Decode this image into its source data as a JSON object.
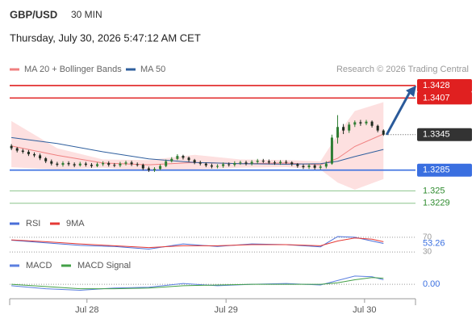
{
  "header": {
    "symbol": "GBP/USD",
    "interval": "30 MIN",
    "datetime": "Thursday, July 30, 2026 5:47:12 AM CET",
    "source": "Research © 2026 Trading Central"
  },
  "chart_data": [
    {
      "type": "candlestick",
      "up_color": "#2e7d32",
      "down_color": "#1f2a1f",
      "xlim": [
        -0.3,
        70.6
      ],
      "xticks": [
        {
          "value": 13.2,
          "label": "Jul 28"
        },
        {
          "value": 37.5,
          "label": "Jul 29"
        },
        {
          "value": 61.7,
          "label": "Jul 30"
        }
      ],
      "ylim": [
        1.3215,
        1.3443
      ],
      "open": [
        1.3326,
        1.3322,
        1.3318,
        1.3316,
        1.3312,
        1.331,
        1.3305,
        1.33,
        1.3296,
        1.3294,
        1.3297,
        1.3295,
        1.3293,
        1.3296,
        1.3294,
        1.3292,
        1.3295,
        1.3297,
        1.3294,
        1.3293,
        1.3296,
        1.3298,
        1.3295,
        1.3294,
        1.3288,
        1.3285,
        1.3287,
        1.3292,
        1.33,
        1.3304,
        1.3309,
        1.3306,
        1.3302,
        1.3298,
        1.3296,
        1.3293,
        1.3291,
        1.3292,
        1.3295,
        1.3294,
        1.3297,
        1.3298,
        1.3296,
        1.3299,
        1.3301,
        1.33,
        1.3298,
        1.3297,
        1.3299,
        1.3298,
        1.3295,
        1.3292,
        1.329,
        1.3293,
        1.3289,
        1.3291,
        1.3296,
        1.334,
        1.3358,
        1.3352,
        1.3362,
        1.3366,
        1.3364,
        1.3367,
        1.336,
        1.3352
      ],
      "high": [
        1.3329,
        1.3324,
        1.3321,
        1.3319,
        1.3315,
        1.3313,
        1.3307,
        1.3303,
        1.3299,
        1.33,
        1.33,
        1.3298,
        1.3299,
        1.3299,
        1.3297,
        1.3298,
        1.33,
        1.33,
        1.3297,
        1.3299,
        1.3301,
        1.3301,
        1.3298,
        1.3296,
        1.3291,
        1.329,
        1.3295,
        1.3303,
        1.3307,
        1.3312,
        1.3311,
        1.3308,
        1.3304,
        1.3301,
        1.3298,
        1.3296,
        1.3295,
        1.3298,
        1.3298,
        1.33,
        1.3301,
        1.3301,
        1.3302,
        1.3304,
        1.3304,
        1.3303,
        1.3301,
        1.3302,
        1.3302,
        1.33,
        1.3297,
        1.3295,
        1.3296,
        1.3295,
        1.3294,
        1.33,
        1.3345,
        1.3378,
        1.3363,
        1.3366,
        1.3369,
        1.337,
        1.337,
        1.3369,
        1.3362,
        1.3354
      ],
      "low": [
        1.3319,
        1.3315,
        1.3313,
        1.3309,
        1.3307,
        1.3302,
        1.3297,
        1.3293,
        1.3291,
        1.3291,
        1.3292,
        1.329,
        1.3291,
        1.3291,
        1.3289,
        1.329,
        1.3292,
        1.3291,
        1.329,
        1.329,
        1.3293,
        1.3292,
        1.3291,
        1.3285,
        1.3282,
        1.3282,
        1.3285,
        1.329,
        1.3298,
        1.3302,
        1.3303,
        1.3299,
        1.3295,
        1.3293,
        1.329,
        1.3288,
        1.3288,
        1.3289,
        1.3291,
        1.3291,
        1.3294,
        1.3293,
        1.3293,
        1.3296,
        1.3297,
        1.3295,
        1.3294,
        1.3294,
        1.3295,
        1.3292,
        1.3289,
        1.3287,
        1.3287,
        1.3286,
        1.3286,
        1.3288,
        1.3294,
        1.333,
        1.3346,
        1.3348,
        1.3358,
        1.336,
        1.3361,
        1.3357,
        1.3349,
        1.3343
      ],
      "close": [
        1.3322,
        1.3318,
        1.3316,
        1.3312,
        1.331,
        1.3305,
        1.33,
        1.3296,
        1.3294,
        1.3297,
        1.3295,
        1.3293,
        1.3296,
        1.3294,
        1.3292,
        1.3295,
        1.3297,
        1.3294,
        1.3293,
        1.3296,
        1.3298,
        1.3295,
        1.3294,
        1.3288,
        1.3285,
        1.3287,
        1.3292,
        1.33,
        1.3304,
        1.3309,
        1.3306,
        1.3302,
        1.3298,
        1.3296,
        1.3293,
        1.3291,
        1.3292,
        1.3295,
        1.3294,
        1.3297,
        1.3298,
        1.3296,
        1.3299,
        1.3301,
        1.33,
        1.3298,
        1.3297,
        1.3299,
        1.3298,
        1.3295,
        1.3292,
        1.329,
        1.3293,
        1.3289,
        1.3291,
        1.3296,
        1.334,
        1.3358,
        1.3352,
        1.3362,
        1.3366,
        1.3364,
        1.3367,
        1.336,
        1.3352,
        1.3345
      ],
      "overlays": [
        {
          "name": "MA 20 + Bollinger Bands",
          "color": "#f08080",
          "band_color": "#fde0e0",
          "x": [
            0,
            8,
            16,
            24,
            32,
            40,
            48,
            54,
            57,
            60,
            65
          ],
          "values": [
            1.3326,
            1.331,
            1.3297,
            1.3294,
            1.3298,
            1.3296,
            1.3297,
            1.3294,
            1.3305,
            1.3325,
            1.3346
          ],
          "upper": [
            1.3368,
            1.3322,
            1.3303,
            1.3302,
            1.3311,
            1.3303,
            1.3302,
            1.33,
            1.3345,
            1.3385,
            1.34
          ],
          "lower": [
            1.329,
            1.3286,
            1.3289,
            1.3283,
            1.3286,
            1.3289,
            1.329,
            1.3286,
            1.3264,
            1.3252,
            1.327
          ]
        },
        {
          "name": "MA 50",
          "color": "#2f5f9e",
          "x": [
            0,
            8,
            16,
            24,
            32,
            40,
            48,
            54,
            57,
            60,
            65
          ],
          "values": [
            1.334,
            1.333,
            1.3316,
            1.3304,
            1.3298,
            1.3296,
            1.3295,
            1.3296,
            1.33,
            1.3308,
            1.332
          ]
        }
      ],
      "levels": [
        {
          "value": 1.3428,
          "color": "#e02020",
          "style": "box"
        },
        {
          "value": 1.3407,
          "color": "#e02020",
          "style": "box"
        },
        {
          "value": 1.3285,
          "color": "#3a6fe0",
          "style": "box"
        },
        {
          "value": 1.325,
          "color": "#8bc48b",
          "style": "text"
        },
        {
          "value": 1.3229,
          "color": "#8bc48b",
          "style": "text"
        }
      ],
      "last_color": "#333333"
    },
    {
      "type": "line",
      "ylim": [
        17,
        83
      ],
      "yticks": [
        30,
        70
      ],
      "series": [
        {
          "name": "RSI",
          "color": "#4a6fd8",
          "x": [
            0,
            6,
            12,
            18,
            24,
            30,
            36,
            42,
            48,
            54,
            57,
            60,
            63,
            65
          ],
          "values": [
            62,
            55,
            48,
            45,
            38,
            52,
            45,
            52,
            50,
            44,
            72,
            70,
            60,
            53.26
          ]
        },
        {
          "name": "9MA",
          "color": "#e53935",
          "x": [
            0,
            6,
            12,
            18,
            24,
            30,
            36,
            42,
            48,
            54,
            57,
            60,
            63,
            65
          ],
          "values": [
            63,
            58,
            52,
            47,
            42,
            47,
            47,
            50,
            50,
            47,
            60,
            68,
            65,
            58
          ]
        }
      ]
    },
    {
      "type": "line",
      "ylim": [
        -0.0015,
        0.0013
      ],
      "yticks": [
        {
          "value": 0,
          "label": "0.00"
        }
      ],
      "series": [
        {
          "name": "MACD",
          "color": "#5b7fe0",
          "x": [
            0,
            6,
            12,
            18,
            24,
            30,
            36,
            42,
            48,
            54,
            57,
            60,
            63,
            65
          ],
          "values": [
            -0.0002,
            -0.0006,
            -0.0008,
            -0.0005,
            -0.0004,
            0.0001,
            -0.0002,
            0.0,
            0.0001,
            -0.0001,
            0.0005,
            0.0011,
            0.001,
            0.0006
          ]
        },
        {
          "name": "MACD Signal",
          "color": "#43a047",
          "x": [
            0,
            6,
            12,
            18,
            24,
            30,
            36,
            42,
            48,
            54,
            57,
            60,
            63,
            65
          ],
          "values": [
            0.0,
            -0.0003,
            -0.0006,
            -0.0006,
            -0.0005,
            -0.0002,
            -0.0001,
            0.0,
            0.0,
            0.0,
            0.0002,
            0.0006,
            0.0009,
            0.0008
          ]
        }
      ]
    }
  ]
}
